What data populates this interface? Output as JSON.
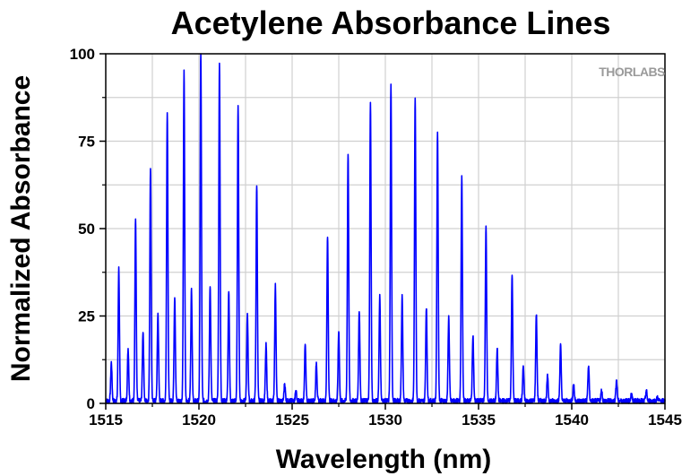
{
  "chart_data": {
    "type": "line",
    "title": "Acetylene Absorbance Lines",
    "xlabel": "Wavelength (nm)",
    "ylabel": "Normalized Absorbance",
    "xlim": [
      1515,
      1545
    ],
    "ylim": [
      0,
      100
    ],
    "xticks": [
      1515,
      1520,
      1525,
      1530,
      1535,
      1540,
      1545
    ],
    "yticks": [
      0,
      25,
      50,
      75,
      100
    ],
    "grid": true,
    "line_color": "#0000ff",
    "watermark": "THORLABS",
    "series": [
      {
        "peaks": [
          [
            1515.3,
            11
          ],
          [
            1515.7,
            38
          ],
          [
            1516.2,
            15
          ],
          [
            1516.6,
            52
          ],
          [
            1517.0,
            20
          ],
          [
            1517.4,
            67
          ],
          [
            1517.8,
            25
          ],
          [
            1518.3,
            83
          ],
          [
            1518.7,
            30
          ],
          [
            1519.2,
            94
          ],
          [
            1519.6,
            32
          ],
          [
            1520.1,
            100
          ],
          [
            1520.6,
            33
          ],
          [
            1521.1,
            97
          ],
          [
            1521.6,
            31
          ],
          [
            1522.1,
            85
          ],
          [
            1522.6,
            25
          ],
          [
            1523.1,
            62
          ],
          [
            1523.6,
            16
          ],
          [
            1524.1,
            33
          ],
          [
            1524.6,
            5
          ],
          [
            1525.2,
            3
          ],
          [
            1525.7,
            16
          ],
          [
            1526.3,
            11
          ],
          [
            1526.9,
            47
          ],
          [
            1527.5,
            20
          ],
          [
            1528.0,
            71
          ],
          [
            1528.6,
            26
          ],
          [
            1529.2,
            85
          ],
          [
            1529.7,
            30
          ],
          [
            1530.3,
            90
          ],
          [
            1530.9,
            30
          ],
          [
            1531.6,
            87
          ],
          [
            1532.2,
            27
          ],
          [
            1532.8,
            77
          ],
          [
            1533.4,
            24
          ],
          [
            1534.1,
            64
          ],
          [
            1534.7,
            19
          ],
          [
            1535.4,
            50
          ],
          [
            1536.0,
            15
          ],
          [
            1536.8,
            36
          ],
          [
            1537.4,
            10
          ],
          [
            1538.1,
            25
          ],
          [
            1538.7,
            7
          ],
          [
            1539.4,
            16
          ],
          [
            1540.1,
            5
          ],
          [
            1540.9,
            10
          ],
          [
            1541.6,
            3
          ],
          [
            1542.4,
            6
          ],
          [
            1543.2,
            2
          ],
          [
            1544.0,
            3
          ],
          [
            1544.6,
            1
          ]
        ]
      }
    ]
  }
}
